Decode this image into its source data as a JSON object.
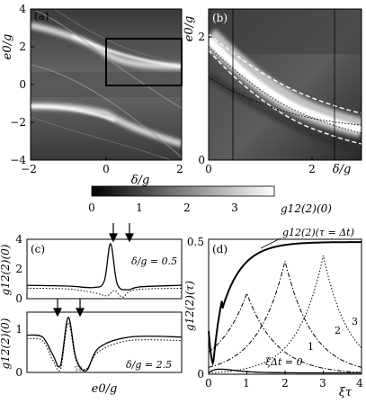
{
  "figure": {
    "panels": [
      {
        "label": "(a)",
        "xlabel": "δ/g",
        "ylabel": "e0/g",
        "xticks": [
          "−2",
          "0",
          "2"
        ],
        "yticks": [
          "4",
          "2",
          "0",
          "−2",
          "−4"
        ]
      },
      {
        "label": "(b)",
        "xlabel": "δ/g",
        "ylabel": "e0/g",
        "xticks": [
          "0",
          "2"
        ],
        "yticks": [
          "2",
          "0"
        ]
      },
      {
        "label": "(c)",
        "annotation": "δ/g = 0.5",
        "ylabel": "g12(2)(0)",
        "yticks": [
          "4",
          "2",
          "0"
        ]
      },
      {
        "annotation": "δ/g = 2.5",
        "ylabel": "g12(2)(0)",
        "yticks": [
          "1",
          "0"
        ],
        "xlabel": "e0/g"
      },
      {
        "label": "(d)",
        "ylabel": "g12(2)(τ)",
        "xlabel": "ξτ",
        "xticks": [
          "0",
          "1",
          "2",
          "3",
          "4"
        ],
        "yticks": [
          "0.5",
          "0"
        ],
        "curve_labels": [
          "g12(2)(τ = Δt)",
          "ξΔt = 0",
          "1",
          "2",
          "3"
        ]
      }
    ],
    "colorbar": {
      "label": "g12(2)(0)",
      "ticks": [
        "0",
        "1",
        "2",
        "3"
      ]
    }
  },
  "chart_data": [
    {
      "type": "heatmap",
      "panel": "a",
      "xlim": [
        -2,
        2
      ],
      "ylim": [
        -4,
        4
      ]
    },
    {
      "type": "heatmap",
      "panel": "b",
      "xlim": [
        0,
        2.4
      ],
      "ylim": [
        0,
        2.6
      ]
    },
    {
      "type": "line",
      "panel": "c-top",
      "param": "δ/g = 0.5",
      "ylim": [
        0,
        4
      ],
      "series": [
        {
          "style": "solid",
          "x": [
            0,
            0.8,
            1.3,
            1.5,
            1.62,
            1.75,
            1.95,
            2.2,
            3
          ],
          "y": [
            0.9,
            0.85,
            0.75,
            1.2,
            3.7,
            1.0,
            0.6,
            0.8,
            0.9
          ]
        },
        {
          "style": "dotted",
          "x": [
            0,
            0.8,
            1.3,
            1.55,
            1.7,
            1.85,
            2.0,
            2.3,
            3
          ],
          "y": [
            0.7,
            0.65,
            0.4,
            0.2,
            0.55,
            0.1,
            0.5,
            0.65,
            0.7
          ]
        }
      ]
    },
    {
      "type": "line",
      "panel": "c-bottom",
      "param": "δ/g = 2.5",
      "ylim": [
        0,
        1.7
      ],
      "series": [
        {
          "style": "solid",
          "x": [
            0,
            0.3,
            0.5,
            0.65,
            0.8,
            0.95,
            1.15,
            1.4,
            2,
            3
          ],
          "y": [
            1.05,
            1.0,
            0.5,
            0.2,
            1.55,
            0.4,
            0.05,
            0.7,
            1.0,
            1.0
          ]
        },
        {
          "style": "dotted",
          "x": [
            0,
            0.3,
            0.5,
            0.65,
            0.8,
            0.95,
            1.15,
            1.4,
            2,
            3
          ],
          "y": [
            0.95,
            0.9,
            0.35,
            0.1,
            1.4,
            0.35,
            0.1,
            0.6,
            0.9,
            0.9
          ]
        }
      ]
    },
    {
      "type": "line",
      "panel": "d",
      "xlim": [
        0,
        4
      ],
      "ylim": [
        0,
        0.5
      ],
      "series": [
        {
          "name": "g12(2)(τ = Δt)",
          "style": "solid-thick"
        },
        {
          "name": "ξΔt = 0",
          "style": "solid"
        },
        {
          "name": "1",
          "style": "dashdot"
        },
        {
          "name": "2",
          "style": "dashdot"
        },
        {
          "name": "3",
          "style": "dotted"
        }
      ]
    }
  ]
}
